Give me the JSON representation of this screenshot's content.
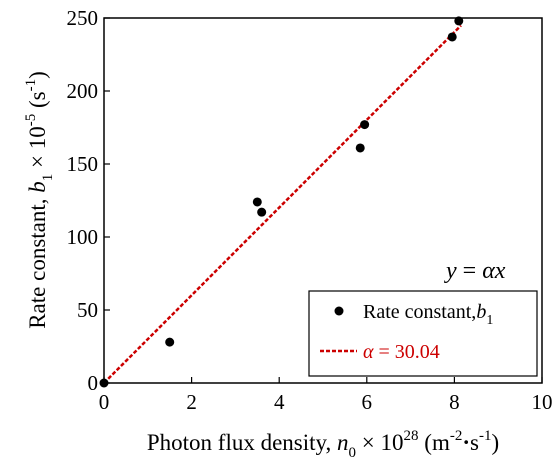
{
  "chart_data": {
    "type": "scatter",
    "xlabel": {
      "prefix": "Photon flux density, ",
      "var": "n",
      "var_sub": "0",
      "times": " × 10",
      "exp": "28",
      "unit_open": " (m",
      "unit_exp1": "-2",
      "unit_dot": "·",
      "unit_s": "s",
      "unit_exp2": "-1",
      "unit_close": ")"
    },
    "ylabel": {
      "prefix": "Rate constant, ",
      "var": "b",
      "var_sub": "1",
      "times": " × 10",
      "exp": "-5",
      "unit_open": " (s",
      "unit_exp": "-1",
      "unit_close": ")"
    },
    "xlim": [
      0,
      10
    ],
    "ylim": [
      0,
      250
    ],
    "xticks": [
      "0",
      "2",
      "4",
      "6",
      "8",
      "10"
    ],
    "yticks": [
      "0",
      "50",
      "100",
      "150",
      "200",
      "250"
    ],
    "grid": false,
    "annotation": {
      "y": "y",
      "eq": " = ",
      "rhs": "αx"
    },
    "legend": {
      "placement": "bottom-right",
      "items": [
        {
          "label": "Rate constant,",
          "var": "b",
          "sub": "1",
          "marker": "circle",
          "color": "#000000"
        },
        {
          "label_var": "α",
          "label": " = 30.04",
          "marker": "dashed-line",
          "color": "#cc0000"
        }
      ]
    },
    "series": [
      {
        "name": "Rate constant, b1",
        "color": "#000000",
        "points": [
          {
            "x": 0.0,
            "y": 0
          },
          {
            "x": 1.5,
            "y": 28
          },
          {
            "x": 3.5,
            "y": 124
          },
          {
            "x": 3.6,
            "y": 117
          },
          {
            "x": 5.85,
            "y": 161
          },
          {
            "x": 5.95,
            "y": 177
          },
          {
            "x": 7.95,
            "y": 237
          },
          {
            "x": 8.1,
            "y": 248
          }
        ]
      },
      {
        "name": "α = 30.04",
        "color": "#cc0000",
        "fit": {
          "slope": 30.04,
          "x_start": 0,
          "x_end": 8.15
        }
      }
    ]
  }
}
